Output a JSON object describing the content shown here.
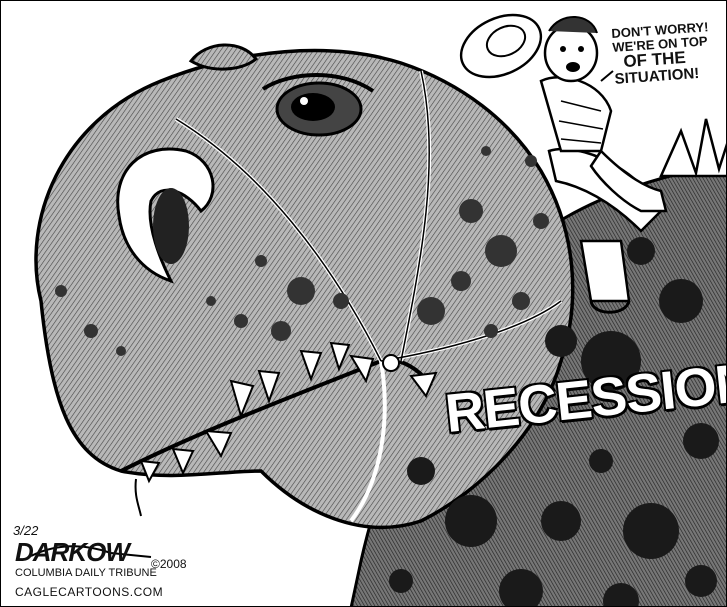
{
  "cartoon": {
    "speech_lines": [
      "DON'T WORRY!",
      "WE'RE ON TOP",
      "OF THE",
      "SITUATION!"
    ],
    "body_label": "RECESSION",
    "credit": {
      "date": "3/22",
      "artist": "DARKOW",
      "year": "©2008",
      "paper": "COLUMBIA DAILY TRIBUNE",
      "site": "CAGLECARTOONS.COM"
    }
  },
  "colors": {
    "ink": "#111111",
    "paper": "#ffffff",
    "hide": "#9a9a9a",
    "spots": "#3a3a3a"
  }
}
